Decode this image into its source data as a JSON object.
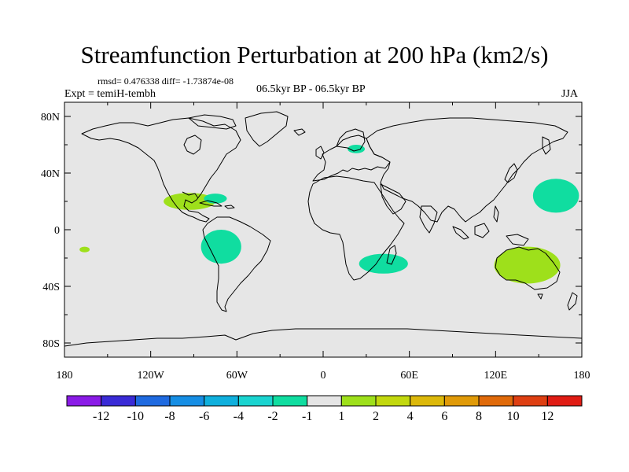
{
  "title": "Streamfunction Perturbation at 200 hPa (km2/s)",
  "stats": "rmsd= 0.476338 diff= -1.73874e-08",
  "experiment": "Expt = temiH-tembh",
  "period": "06.5kyr BP - 06.5kyr BP",
  "season": "JJA",
  "lat_labels": [
    "80N",
    "40N",
    "0",
    "40S",
    "80S"
  ],
  "lon_labels": [
    "180",
    "120W",
    "60W",
    "0",
    "60E",
    "120E",
    "180"
  ],
  "colorbar": {
    "colors": [
      "#8a1be6",
      "#3a2bd6",
      "#1f6ae0",
      "#168ee4",
      "#10b0dd",
      "#1ad4d0",
      "#10dda0",
      "#e5e5e5",
      "#9ee01b",
      "#c2d80e",
      "#dcb80a",
      "#e09a08",
      "#e06a0a",
      "#de3f12",
      "#e01c14"
    ],
    "labels": [
      "-12",
      "-10",
      "-8",
      "-6",
      "-4",
      "-2",
      "-1",
      "1",
      "2",
      "4",
      "6",
      "8",
      "10",
      "12"
    ]
  },
  "anomalies": [
    {
      "name": "scandinavia",
      "lon": 23,
      "lat": 57,
      "rx": 6,
      "ry": 3,
      "color": "#10dda0"
    },
    {
      "name": "caribbean",
      "lon": -93,
      "lat": 20,
      "rx": 18,
      "ry": 6,
      "color": "#9ee01b"
    },
    {
      "name": "cuba-core",
      "lon": -75,
      "lat": 22,
      "rx": 8,
      "ry": 3.5,
      "color": "#10dda0"
    },
    {
      "name": "central-pacific",
      "lon": -166,
      "lat": -14,
      "rx": 3.5,
      "ry": 2,
      "color": "#9ee01b"
    },
    {
      "name": "south-america",
      "lon": -71,
      "lat": -12,
      "rx": 14,
      "ry": 12,
      "color": "#10dda0"
    },
    {
      "name": "southern-africa",
      "lon": 42,
      "lat": -24,
      "rx": 17,
      "ry": 7,
      "color": "#10dda0"
    },
    {
      "name": "northwest-pacific",
      "lon": 162,
      "lat": 24,
      "rx": 16,
      "ry": 12,
      "color": "#10dda0"
    },
    {
      "name": "australia",
      "lon": 142,
      "lat": -25,
      "rx": 23,
      "ry": 13,
      "color": "#9ee01b"
    }
  ]
}
